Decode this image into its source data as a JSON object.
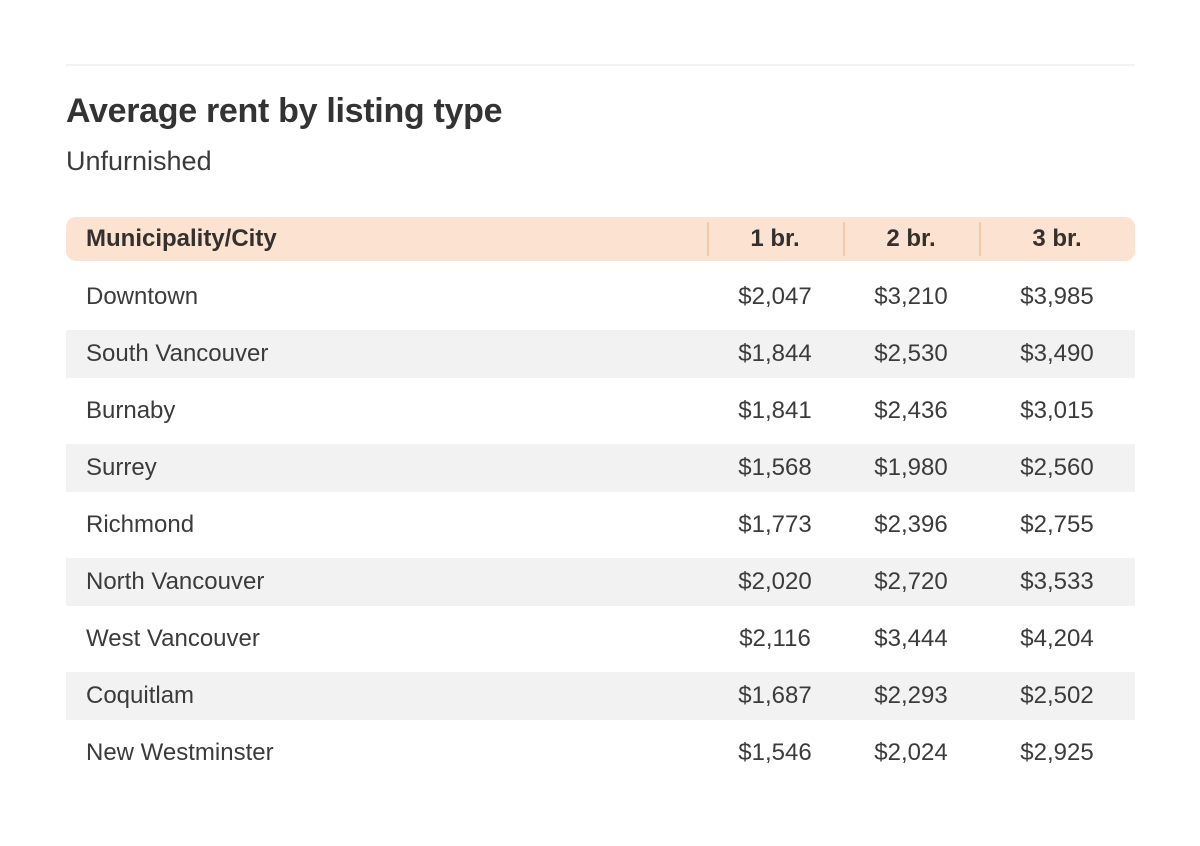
{
  "section": {
    "title": "Average rent by listing type",
    "subtitle": "Unfurnished"
  },
  "table": {
    "columns": [
      "Municipality/City",
      "1 br.",
      "2 br.",
      "3 br."
    ],
    "rows": [
      [
        "Downtown",
        "$2,047",
        "$3,210",
        "$3,985"
      ],
      [
        "South Vancouver",
        "$1,844",
        "$2,530",
        "$3,490"
      ],
      [
        "Burnaby",
        "$1,841",
        "$2,436",
        "$3,015"
      ],
      [
        "Surrey",
        "$1,568",
        "$1,980",
        "$2,560"
      ],
      [
        "Richmond",
        "$1,773",
        "$2,396",
        "$2,755"
      ],
      [
        "North Vancouver",
        "$2,020",
        "$2,720",
        "$3,533"
      ],
      [
        "West Vancouver",
        "$2,116",
        "$3,444",
        "$4,204"
      ],
      [
        "Coquitlam",
        "$1,687",
        "$2,293",
        "$2,502"
      ],
      [
        "New Westminster",
        "$1,546",
        "$2,024",
        "$2,925"
      ]
    ]
  },
  "chart_data": {
    "type": "table",
    "title": "Average rent by listing type",
    "subtitle": "Unfurnished",
    "columns": [
      "Municipality/City",
      "1 br.",
      "2 br.",
      "3 br."
    ],
    "rows": [
      {
        "municipality": "Downtown",
        "br1": 2047,
        "br2": 3210,
        "br3": 3985
      },
      {
        "municipality": "South Vancouver",
        "br1": 1844,
        "br2": 2530,
        "br3": 3490
      },
      {
        "municipality": "Burnaby",
        "br1": 1841,
        "br2": 2436,
        "br3": 3015
      },
      {
        "municipality": "Surrey",
        "br1": 1568,
        "br2": 1980,
        "br3": 2560
      },
      {
        "municipality": "Richmond",
        "br1": 1773,
        "br2": 2396,
        "br3": 2755
      },
      {
        "municipality": "North Vancouver",
        "br1": 2020,
        "br2": 2720,
        "br3": 3533
      },
      {
        "municipality": "West Vancouver",
        "br1": 2116,
        "br2": 3444,
        "br3": 4204
      },
      {
        "municipality": "Coquitlam",
        "br1": 1687,
        "br2": 2293,
        "br3": 2502
      },
      {
        "municipality": "New Westminster",
        "br1": 1546,
        "br2": 2024,
        "br3": 2925
      }
    ]
  },
  "colors": {
    "header_bg": "#fce3d1",
    "header_divider": "#f2c8a8",
    "row_stripe": "#f2f2f2",
    "rule": "#f2f2f2",
    "text": "#3b3b3b",
    "heading_text": "#333333"
  }
}
